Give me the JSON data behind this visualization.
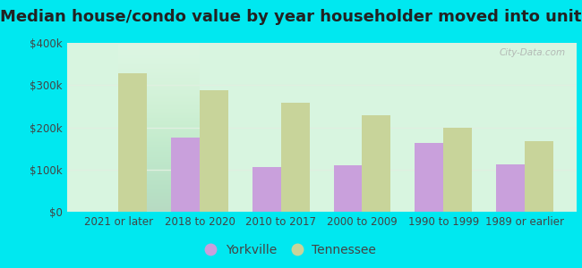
{
  "title": "Median house/condo value by year householder moved into unit",
  "categories": [
    "2021 or later",
    "2018 to 2020",
    "2010 to 2017",
    "2000 to 2009",
    "1990 to 1999",
    "1989 or earlier"
  ],
  "yorkville_values": [
    0,
    175000,
    105000,
    110000,
    162000,
    112000
  ],
  "tennessee_values": [
    328000,
    288000,
    258000,
    228000,
    200000,
    168000
  ],
  "yorkville_color": "#c9a0dc",
  "tennessee_color": "#c8d49a",
  "background_top": "#f0fff8",
  "background_bottom": "#d8f5e0",
  "outer_bg": "#00e8f0",
  "ylim": [
    0,
    400000
  ],
  "yticks": [
    0,
    100000,
    200000,
    300000,
    400000
  ],
  "ytick_labels": [
    "$0",
    "$100k",
    "$200k",
    "$300k",
    "$400k"
  ],
  "bar_width": 0.35,
  "legend_labels": [
    "Yorkville",
    "Tennessee"
  ],
  "watermark": "City-Data.com",
  "title_fontsize": 13,
  "tick_fontsize": 8.5,
  "legend_fontsize": 10,
  "grid_color": "#e0efe0"
}
